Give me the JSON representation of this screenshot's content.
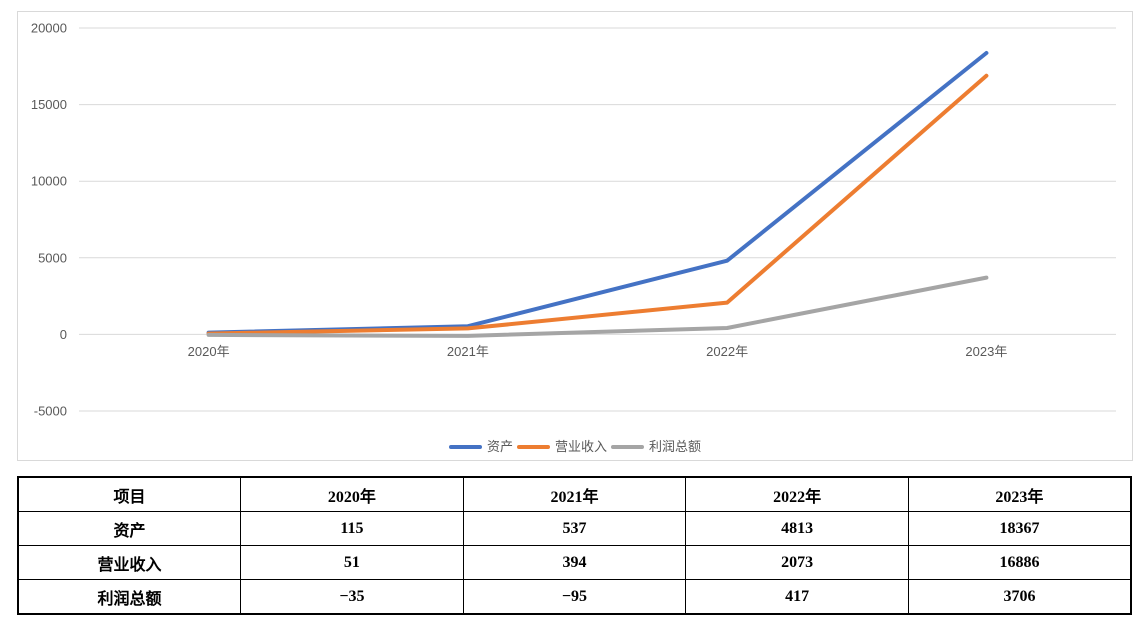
{
  "chart_data": {
    "type": "line",
    "title": "",
    "xlabel": "",
    "ylabel": "",
    "categories": [
      "2020年",
      "2021年",
      "2022年",
      "2023年"
    ],
    "series": [
      {
        "key": "assets",
        "name": "资产",
        "color": "#4472C4",
        "values": [
          115,
          537,
          4813,
          18367
        ]
      },
      {
        "key": "operating-revenue",
        "name": "营业收入",
        "color": "#ED7D31",
        "values": [
          51,
          394,
          2073,
          16886
        ]
      },
      {
        "key": "total-profit",
        "name": "利润总额",
        "color": "#A5A5A5",
        "values": [
          -35,
          -95,
          417,
          3706
        ]
      }
    ],
    "ylim": [
      -5000,
      20000
    ],
    "yticks": [
      20000,
      15000,
      10000,
      5000,
      0,
      -5000
    ],
    "grid": true,
    "legend_position": "bottom",
    "grid_color": "#D9D9D9",
    "axis_label_color": "#595959",
    "line_width": 4
  },
  "table": {
    "headers": [
      "项目",
      "2020年",
      "2021年",
      "2022年",
      "2023年"
    ],
    "rows": [
      {
        "key": "assets",
        "label": "资产",
        "values": [
          "115",
          "537",
          "4813",
          "18367"
        ]
      },
      {
        "key": "operating-revenue",
        "label": "营业收入",
        "values": [
          "51",
          "394",
          "2073",
          "16886"
        ]
      },
      {
        "key": "total-profit",
        "label": "利润总额",
        "values": [
          "−35",
          "−95",
          "417",
          "3706"
        ]
      }
    ]
  }
}
